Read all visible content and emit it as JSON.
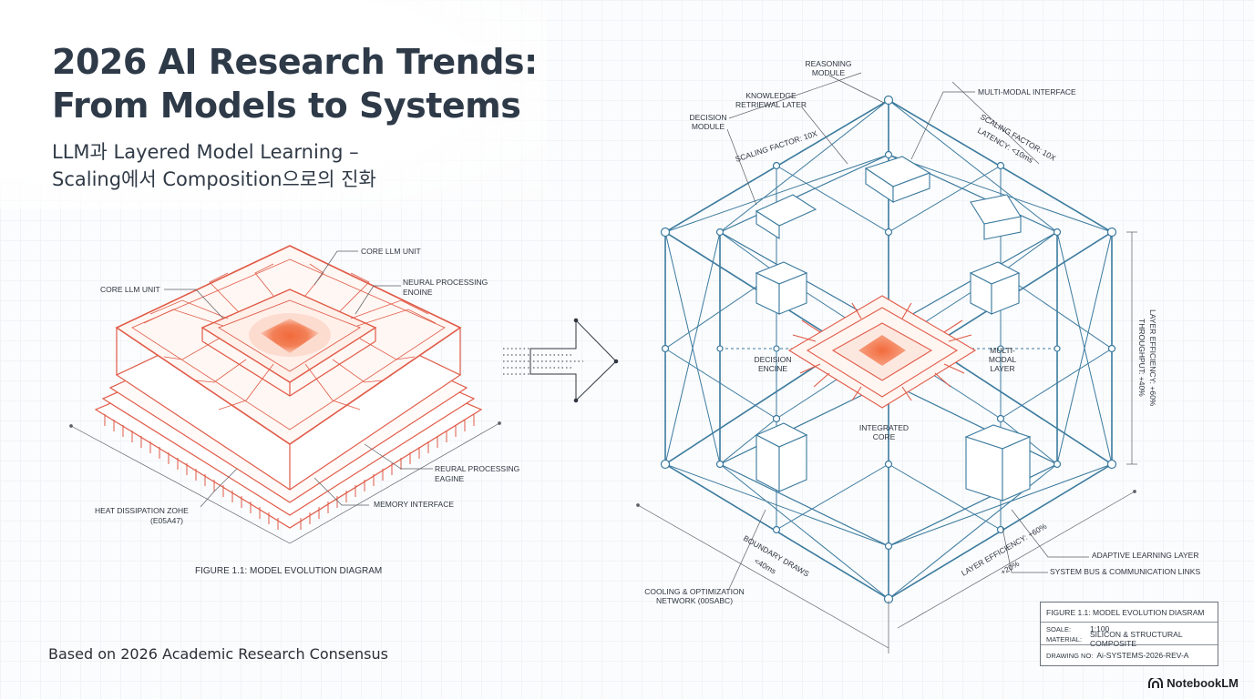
{
  "title_lines": [
    "2026 AI Research Trends:",
    "From Models to Systems"
  ],
  "subtitle_lines": [
    "LLM과 Layered Model Learning –",
    "Scaling에서 Composition으로의 진화"
  ],
  "footer_note": "Based on 2026 Academic Research Consensus",
  "brand": "NotebookLM",
  "left_diagram": {
    "labels": {
      "core_llm_unit_top": "CORE LLM UNIT",
      "core_llm_unit_left": "CORE LLM UNIT",
      "neural_processing_top": [
        "NEURAL PROCESSING",
        "ENOINE"
      ],
      "neural_processing_bottom": [
        "REURAL PROCESSING",
        "EAGINE"
      ],
      "memory_interface": "MEMORY INTERFACE",
      "heat_dissipation": [
        "HEAT DISSIPATION ZOHE",
        "(E05A47)"
      ]
    },
    "caption": "FIGURE 1.1: MODEL EVOLUTION DIAGRAM",
    "accent_color": "#e05a47"
  },
  "right_diagram": {
    "labels": {
      "reasoning_module": [
        "REASONING",
        "MODULE"
      ],
      "knowledge_retrieval": [
        "KNOWLEDGE",
        "RETRIEWAL LATER"
      ],
      "decision_module": [
        "DECISION",
        "MODULE"
      ],
      "multimodal_interface": "MULTI-MODAL INTERFACE",
      "scaling_factor_left": "SCALING FACTOR: 10X",
      "scaling_factor_right": "SCALING FACTOR: 10X",
      "latency": "LATENCY: <10ms",
      "decision_engine": [
        "DECISION",
        "ENCINE"
      ],
      "multimodal_layer": [
        "MULTI-",
        "MODAL",
        "LAYER"
      ],
      "integrated_core": [
        "INTEGRATED",
        "CORE"
      ],
      "throughput": "THROUGHPUT: +40%",
      "layer_efficiency_right": "LAYER EFFICIENCY: +60%",
      "bottom_dim_1": "BOUNDARY DRAWS",
      "bottom_dim_2": "<40ms",
      "layer_efficiency_bottom": "LAYER EFFICIENCY: +60%",
      "bottom_dim_3": "+20%",
      "cooling": [
        "COOLING & OPTIMIZATION",
        "NETWORK (00SABC)"
      ],
      "adaptive_learning": "ADAPTIVE LEARNING LAYER",
      "system_bus": "SYSTEM BUS & COMMUNICATION LINKS"
    },
    "structure_color": "#3b7a9e"
  },
  "title_block": {
    "title": "FIGURE 1.1: MODEL EVOLUTION DIASRAM",
    "scale_key": "SOALE:",
    "scale_val": "1:100",
    "material_key": "MATERIAL:",
    "material_val": "SILICON & STRUCTURAL COMPOSITE",
    "drawing_key": "DRAWING NO:",
    "drawing_val": "Ai-SYSTEMS-2026-REV-A"
  }
}
